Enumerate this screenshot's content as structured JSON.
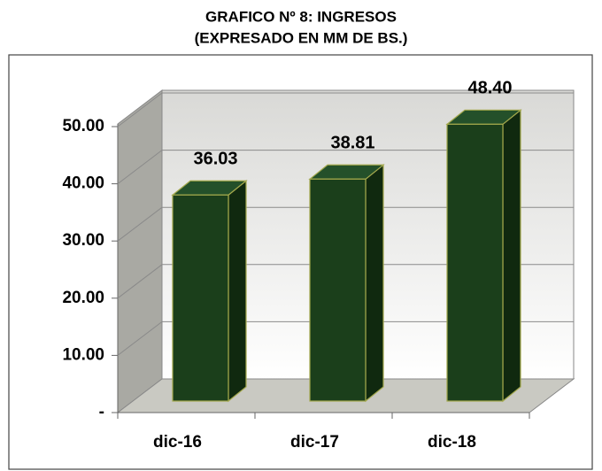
{
  "chart_data": {
    "type": "bar3d",
    "title": [
      "GRAFICO Nº 8: INGRESOS",
      "(EXPRESADO EN MM DE BS.)"
    ],
    "categories": [
      "dic-16",
      "dic-17",
      "dic-18"
    ],
    "values": [
      36.03,
      38.81,
      48.4
    ],
    "value_labels": [
      "36.03",
      "38.81",
      "48.40"
    ],
    "color": "#1b3f1b",
    "ylim": [
      0,
      50
    ],
    "yticks": [
      {
        "value": 0,
        "label": "-"
      },
      {
        "value": 10,
        "label": "10.00"
      },
      {
        "value": 20,
        "label": "20.00"
      },
      {
        "value": 30,
        "label": "30.00"
      },
      {
        "value": 40,
        "label": "40.00"
      },
      {
        "value": 50,
        "label": "50.00"
      }
    ],
    "grid": true
  }
}
